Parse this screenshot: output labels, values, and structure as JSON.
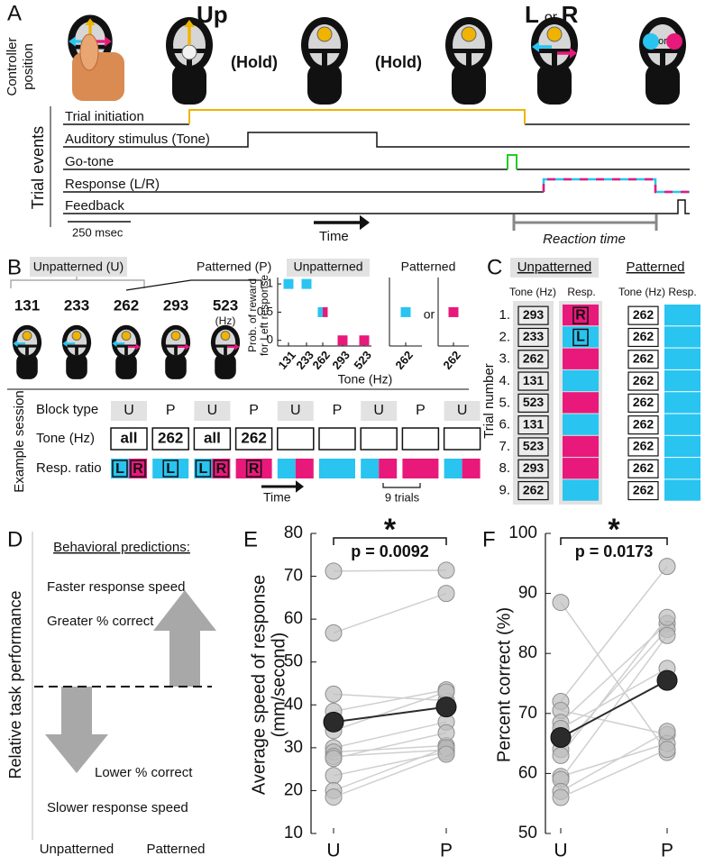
{
  "panel_a": {
    "label": "A",
    "up": "Up",
    "hold": [
      "(Hold)",
      "(Hold)"
    ],
    "l": "L",
    "or": "or",
    "r": "R",
    "or_small": "or",
    "controller_position": [
      "Controller",
      "position"
    ],
    "trial_events": "Trial events",
    "traces": [
      "Trial initiation",
      "Auditory stimulus (Tone)",
      "Go-tone",
      "Response (L/R)",
      "Feedback"
    ],
    "scale_bar": "250 msec",
    "time": "Time",
    "reaction_time": "Reaction time"
  },
  "panel_b": {
    "label": "B",
    "unpatterned": "Unpatterned (U)",
    "patterned": "Patterned (P)",
    "tones": [
      "131",
      "233",
      "262",
      "293",
      "523"
    ],
    "hz": "(Hz)",
    "or": "or",
    "example_session": "Example session",
    "row_labels": [
      "Block type",
      "Tone (Hz)",
      "Resp. ratio"
    ],
    "blocks": [
      {
        "type": "U",
        "tone": "all",
        "resp": [
          {
            "color": "#29c4f0",
            "letter": "L"
          },
          {
            "color": "#e8197b",
            "letter": "R"
          }
        ]
      },
      {
        "type": "P",
        "tone": "262",
        "resp": [
          {
            "color": "#29c4f0",
            "letter": "L"
          }
        ]
      },
      {
        "type": "U",
        "tone": "all",
        "resp": [
          {
            "color": "#29c4f0",
            "letter": "L"
          },
          {
            "color": "#e8197b",
            "letter": "R"
          }
        ]
      },
      {
        "type": "P",
        "tone": "262",
        "resp": [
          {
            "color": "#e8197b",
            "letter": "R"
          }
        ]
      },
      {
        "type": "U",
        "resp": [
          {
            "color": "#29c4f0"
          },
          {
            "color": "#e8197b"
          }
        ]
      },
      {
        "type": "P",
        "resp": [
          {
            "color": "#29c4f0"
          }
        ]
      },
      {
        "type": "U",
        "resp": [
          {
            "color": "#29c4f0"
          },
          {
            "color": "#e8197b"
          }
        ]
      },
      {
        "type": "P",
        "resp": [
          {
            "color": "#e8197b"
          }
        ]
      },
      {
        "type": "U",
        "resp": [
          {
            "color": "#29c4f0"
          },
          {
            "color": "#e8197b"
          }
        ]
      }
    ],
    "time": "Time",
    "trials": "9 trials"
  },
  "panel_c": {
    "label": "C",
    "unpatterned": "Unpatterned",
    "patterned": "Patterned",
    "headers": [
      "Tone (Hz)",
      "Resp.",
      "Tone (Hz)",
      "Resp."
    ],
    "y_label": "Trial number",
    "rows": [
      {
        "trial": "1.",
        "tone": 293,
        "resp": "#e8197b",
        "letter": "R",
        "patterned_tone": 262,
        "patterned_resp": "#29c4f0"
      },
      {
        "trial": "2.",
        "tone": 233,
        "resp": "#29c4f0",
        "letter": "L",
        "patterned_tone": 262,
        "patterned_resp": "#29c4f0"
      },
      {
        "trial": "3.",
        "tone": 262,
        "resp": "#e8197b",
        "patterned_tone": 262,
        "patterned_resp": "#29c4f0"
      },
      {
        "trial": "4.",
        "tone": 131,
        "resp": "#29c4f0",
        "patterned_tone": 262,
        "patterned_resp": "#29c4f0"
      },
      {
        "trial": "5.",
        "tone": 523,
        "resp": "#e8197b",
        "patterned_tone": 262,
        "patterned_resp": "#29c4f0"
      },
      {
        "trial": "6.",
        "tone": 131,
        "resp": "#29c4f0",
        "patterned_tone": 262,
        "patterned_resp": "#29c4f0"
      },
      {
        "trial": "7.",
        "tone": 523,
        "resp": "#e8197b",
        "patterned_tone": 262,
        "patterned_resp": "#29c4f0"
      },
      {
        "trial": "8.",
        "tone": 293,
        "resp": "#e8197b",
        "patterned_tone": 262,
        "patterned_resp": "#29c4f0"
      },
      {
        "trial": "9.",
        "tone": 262,
        "resp": "#29c4f0",
        "patterned_tone": 262,
        "patterned_resp": "#29c4f0"
      }
    ]
  },
  "panel_d": {
    "label": "D",
    "title": "Behavioral predictions:",
    "faster": "Faster response speed",
    "greater": "Greater % correct",
    "lower": "Lower % correct",
    "slower": "Slower response speed",
    "y_label": "Relative task performance",
    "x_labels": [
      "Unpatterned",
      "Patterned"
    ]
  },
  "chart_data": [
    {
      "type": "dot",
      "title": "Unpatterned",
      "y_label": [
        "Prob. of reward",
        "for Left response"
      ],
      "x_label": "Tone (Hz)",
      "categories": [
        "131",
        "233",
        "262",
        "293",
        "523"
      ],
      "series": [
        {
          "color": "#29c4f0",
          "values": [
            1,
            1,
            0.5,
            null,
            null
          ]
        },
        {
          "color": "#e8197b",
          "values": [
            null,
            null,
            0.5,
            0,
            0
          ]
        }
      ],
      "ylim": [
        -0.1,
        1.05
      ],
      "yticks": [
        0,
        0.5,
        1
      ]
    },
    {
      "type": "dot",
      "title": "Patterned",
      "categories": [
        "262"
      ],
      "series": [
        {
          "color": "#29c4f0",
          "values": [
            0.5
          ]
        }
      ],
      "ylim": [
        -0.1,
        1.05
      ]
    },
    {
      "type": "dot",
      "categories": [
        "262"
      ],
      "series": [
        {
          "color": "#e8197b",
          "values": [
            0.5
          ]
        }
      ],
      "ylim": [
        -0.1,
        1.05
      ]
    },
    {
      "type": "paired",
      "label": "E",
      "y_label": [
        "Average speed of response",
        "(mm/second)"
      ],
      "categories": [
        "U",
        "P"
      ],
      "ylim": [
        10,
        80
      ],
      "yticks": [
        10,
        20,
        30,
        40,
        50,
        60,
        70,
        80
      ],
      "series": [
        {
          "color": "#bdbdbd",
          "values": [
            71.2,
            71.4
          ]
        },
        {
          "color": "#bdbdbd",
          "values": [
            56.8,
            66
          ]
        },
        {
          "color": "#bdbdbd",
          "values": [
            42.5,
            41
          ]
        },
        {
          "color": "#bdbdbd",
          "values": [
            38.5,
            43.5
          ]
        },
        {
          "color": "#bdbdbd",
          "values": [
            34,
            43
          ]
        },
        {
          "color": "#bdbdbd",
          "values": [
            30,
            36
          ]
        },
        {
          "color": "#bdbdbd",
          "values": [
            29,
            30.5
          ]
        },
        {
          "color": "#bdbdbd",
          "values": [
            28,
            29.5
          ]
        },
        {
          "color": "#bdbdbd",
          "values": [
            27.5,
            33.5
          ]
        },
        {
          "color": "#bdbdbd",
          "values": [
            23.5,
            29
          ]
        },
        {
          "color": "#bdbdbd",
          "values": [
            20,
            30
          ]
        },
        {
          "color": "#bdbdbd",
          "values": [
            18.5,
            28.5
          ]
        }
      ],
      "mean": {
        "color": "#2b2b2b",
        "values": [
          36,
          39.5
        ]
      },
      "annotations": [
        "*",
        "p = 0.0092"
      ]
    },
    {
      "type": "paired",
      "label": "F",
      "y_label": [
        "Percent correct (%)"
      ],
      "categories": [
        "U",
        "P"
      ],
      "ylim": [
        50,
        100
      ],
      "yticks": [
        50,
        60,
        70,
        80,
        90,
        100
      ],
      "series": [
        {
          "color": "#bdbdbd",
          "values": [
            88.5,
            63.5
          ]
        },
        {
          "color": "#bdbdbd",
          "values": [
            72,
            94.5
          ]
        },
        {
          "color": "#bdbdbd",
          "values": [
            70.5,
            66.5
          ]
        },
        {
          "color": "#bdbdbd",
          "values": [
            68.5,
            85
          ]
        },
        {
          "color": "#bdbdbd",
          "values": [
            67.5,
            77.5
          ]
        },
        {
          "color": "#bdbdbd",
          "values": [
            64,
            84
          ]
        },
        {
          "color": "#bdbdbd",
          "values": [
            63,
            86
          ]
        },
        {
          "color": "#bdbdbd",
          "values": [
            59.5,
            65
          ]
        },
        {
          "color": "#bdbdbd",
          "values": [
            59,
            83
          ]
        },
        {
          "color": "#bdbdbd",
          "values": [
            57,
            67
          ]
        },
        {
          "color": "#bdbdbd",
          "values": [
            56,
            64
          ]
        }
      ],
      "mean": {
        "color": "#2b2b2b",
        "values": [
          66,
          75.5
        ]
      },
      "annotations": [
        "*",
        "p = 0.0173"
      ]
    }
  ]
}
